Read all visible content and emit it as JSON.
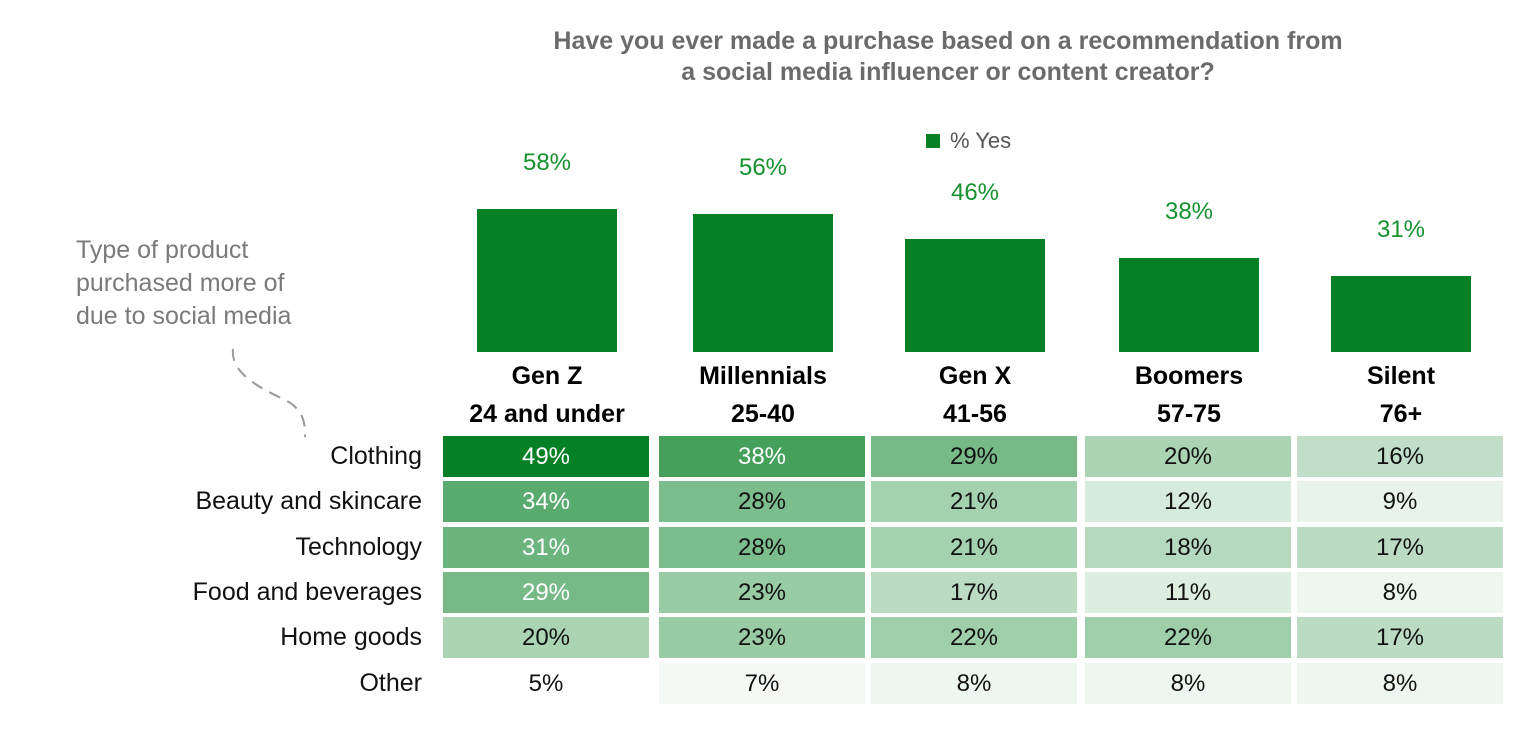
{
  "chart_data": [
    {
      "type": "bar",
      "title": "Have you ever made a purchase based on a recommendation from a social media influencer or content creator?",
      "title_lines": [
        "Have you ever made a purchase based on a recommendation from",
        "a social media influencer or content creator?"
      ],
      "categories": [
        {
          "name": "Gen Z",
          "range": "24 and under"
        },
        {
          "name": "Millennials",
          "range": "25-40"
        },
        {
          "name": "Gen X",
          "range": "41-56"
        },
        {
          "name": "Boomers",
          "range": "57-75"
        },
        {
          "name": "Silent",
          "range": "76+"
        }
      ],
      "series": [
        {
          "name": "% Yes",
          "values": [
            58,
            56,
            46,
            38,
            31
          ],
          "labels": [
            "58%",
            "56%",
            "46%",
            "38%",
            "31%"
          ],
          "color": "#058024"
        }
      ],
      "legend": "top",
      "grid": false
    },
    {
      "type": "heatmap",
      "note_lines": [
        "Type of product",
        "purchased more of",
        "due to social media"
      ],
      "rows": [
        "Clothing",
        "Beauty and skincare",
        "Technology",
        "Food and beverages",
        "Home goods",
        "Other"
      ],
      "columns": [
        "Gen Z",
        "Millennials",
        "Gen X",
        "Boomers",
        "Silent"
      ],
      "values": [
        [
          49,
          38,
          29,
          20,
          16
        ],
        [
          34,
          28,
          21,
          12,
          9
        ],
        [
          31,
          28,
          21,
          18,
          17
        ],
        [
          29,
          23,
          17,
          11,
          8
        ],
        [
          20,
          23,
          22,
          22,
          17
        ],
        [
          5,
          7,
          8,
          8,
          8
        ]
      ],
      "unit": "%",
      "color_low": "#ffffff",
      "color_high": "#058024",
      "light_text_cells": [
        [
          0,
          0
        ],
        [
          1,
          0
        ],
        [
          2,
          0
        ],
        [
          3,
          0
        ],
        [
          0,
          1
        ]
      ]
    }
  ]
}
